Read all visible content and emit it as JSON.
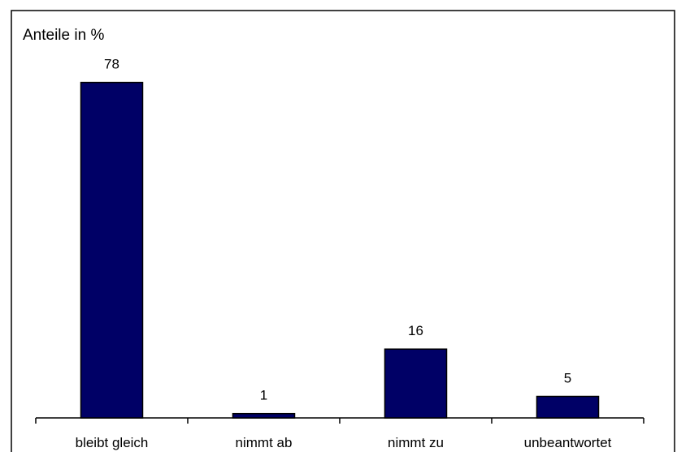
{
  "chart_data": {
    "type": "bar",
    "ylabel": "Anteile in %",
    "categories": [
      "bleibt gleich",
      "nimmt ab",
      "nimmt zu",
      "unbeantwortet"
    ],
    "values": [
      78,
      1,
      16,
      5
    ],
    "data_labels": [
      "78",
      "1",
      "16",
      "5"
    ],
    "ylim": [
      0,
      90
    ],
    "grid": false,
    "legend": "none",
    "colors": {
      "bar_fill": "#000066",
      "bar_stroke": "#000000",
      "frame": "#000000",
      "background": "#ffffff"
    }
  }
}
